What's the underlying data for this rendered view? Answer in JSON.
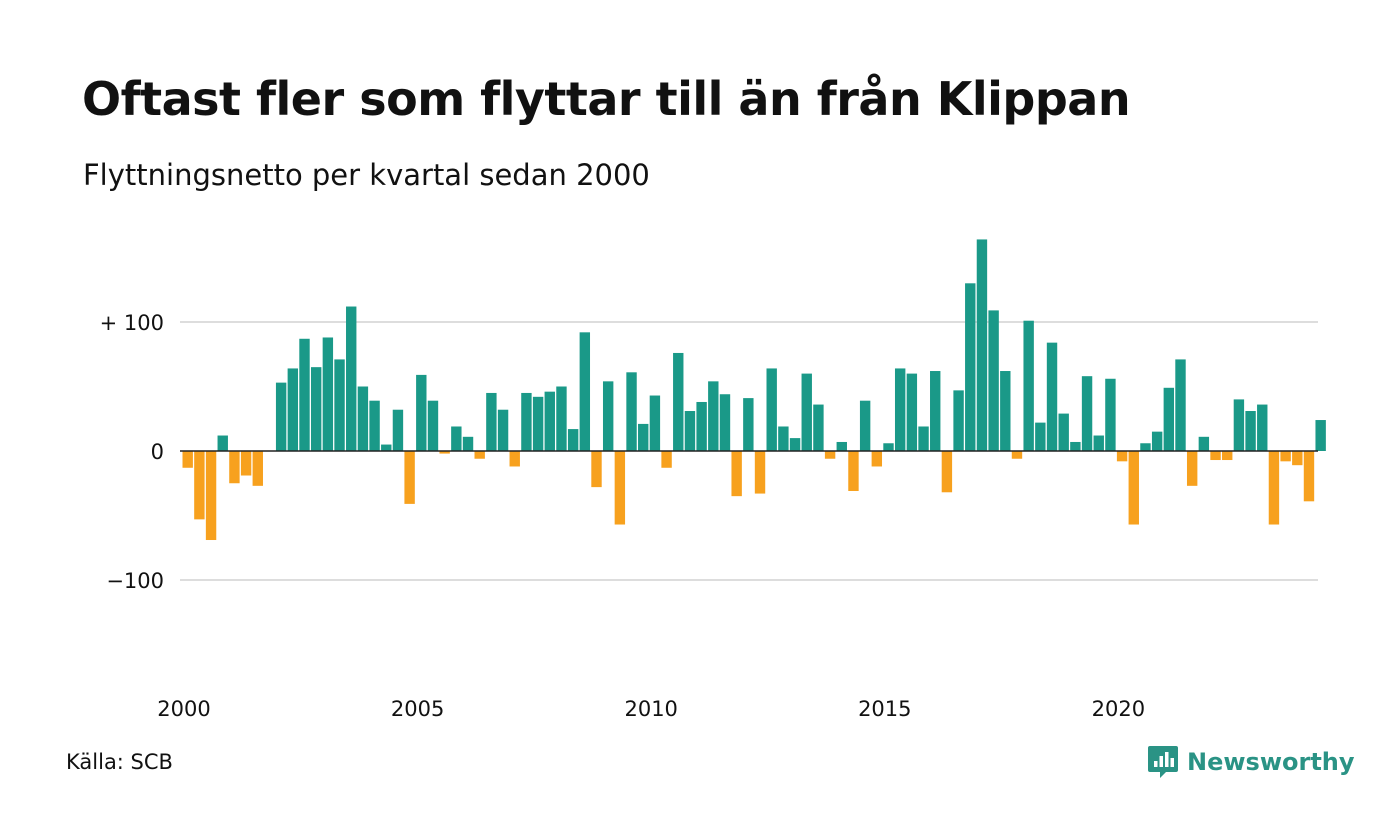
{
  "title": "Oftast fler som flyttar till än från Klippan",
  "subtitle": "Flyttningsnetto per kvartal sedan 2000",
  "source": "Källa: SCB",
  "brand": {
    "name": "Newsworthy",
    "icon": "chart-bubble-icon",
    "color": "#2a9385"
  },
  "colors": {
    "positive": "#1a9988",
    "negative": "#f7a11e",
    "grid": "#dddddd",
    "axis": "#222222"
  },
  "chart_data": {
    "type": "bar",
    "xlabel": "",
    "ylabel": "",
    "x_start": 2000,
    "periods_per_year": 4,
    "x_ticks": [
      {
        "value": 2000,
        "label": "2000"
      },
      {
        "value": 2005,
        "label": "2005"
      },
      {
        "value": 2010,
        "label": "2010"
      },
      {
        "value": 2015,
        "label": "2015"
      },
      {
        "value": 2020,
        "label": "2020"
      }
    ],
    "y_ticks": [
      {
        "value": 100,
        "label": "+ 100"
      },
      {
        "value": 0,
        "label": "0"
      },
      {
        "value": -100,
        "label": "−100"
      }
    ],
    "ylim": [
      -180,
      170
    ],
    "grid": true,
    "legend": "none",
    "values": [
      -13,
      -53,
      -69,
      12,
      -25,
      -19,
      -27,
      0,
      53,
      64,
      87,
      65,
      88,
      71,
      112,
      50,
      39,
      5,
      32,
      -41,
      59,
      39,
      -2,
      19,
      11,
      -6,
      45,
      32,
      -12,
      45,
      42,
      46,
      50,
      17,
      92,
      -28,
      54,
      -57,
      61,
      21,
      43,
      -13,
      76,
      31,
      38,
      54,
      44,
      -35,
      41,
      -33,
      64,
      19,
      10,
      60,
      36,
      -6,
      7,
      -31,
      39,
      -12,
      6,
      64,
      60,
      19,
      62,
      -32,
      47,
      130,
      164,
      109,
      62,
      -6,
      101,
      22,
      84,
      29,
      7,
      58,
      12,
      56,
      -8,
      -57,
      6,
      15,
      49,
      71,
      -27,
      11,
      -7,
      -7,
      40,
      31,
      36,
      -57,
      -8,
      -11,
      -39,
      24
    ]
  }
}
